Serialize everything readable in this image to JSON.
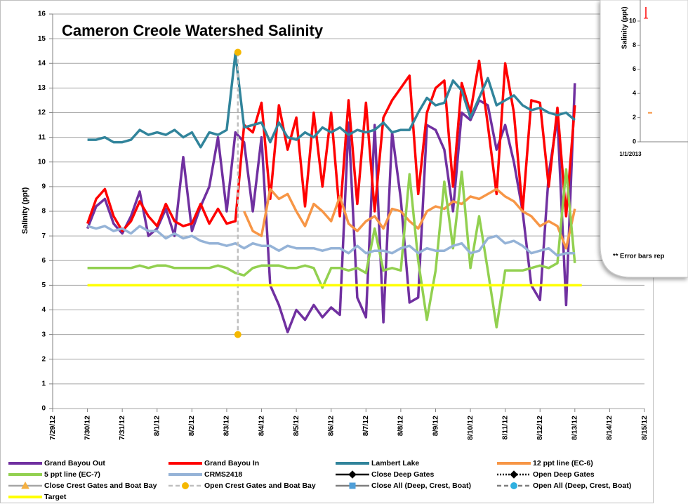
{
  "chart_data": [
    {
      "type": "line",
      "title": "Cameron Creole Watershed Salinity",
      "ylabel": "Salinity (ppt)",
      "xlim": [
        0,
        17
      ],
      "xticks": [
        {
          "value": 0,
          "label": "7/29/12"
        },
        {
          "value": 1,
          "label": "7/30/12"
        },
        {
          "value": 2,
          "label": "7/31/12"
        },
        {
          "value": 3,
          "label": "8/1/12"
        },
        {
          "value": 4,
          "label": "8/2/12"
        },
        {
          "value": 5,
          "label": "8/3/12"
        },
        {
          "value": 6,
          "label": "8/4/12"
        },
        {
          "value": 7,
          "label": "8/5/12"
        },
        {
          "value": 8,
          "label": "8/6/12"
        },
        {
          "value": 9,
          "label": "8/7/12"
        },
        {
          "value": 10,
          "label": "8/8/12"
        },
        {
          "value": 11,
          "label": "8/9/12"
        },
        {
          "value": 12,
          "label": "8/10/12"
        },
        {
          "value": 13,
          "label": "8/11/12"
        },
        {
          "value": 14,
          "label": "8/12/12"
        },
        {
          "value": 15,
          "label": "8/13/12"
        },
        {
          "value": 16,
          "label": "8/14/12"
        },
        {
          "value": 17,
          "label": "8/15/12"
        }
      ],
      "ylim": [
        0,
        16
      ],
      "yticks": [
        0,
        1,
        2,
        3,
        4,
        5,
        6,
        7,
        8,
        9,
        10,
        11,
        12,
        13,
        14,
        15,
        16
      ],
      "grid": true,
      "x": [
        1,
        1.25,
        1.5,
        1.75,
        2,
        2.25,
        2.5,
        2.75,
        3,
        3.25,
        3.5,
        3.75,
        4,
        4.25,
        4.5,
        4.75,
        5,
        5.25,
        5.5,
        5.75,
        6,
        6.25,
        6.5,
        6.75,
        7,
        7.25,
        7.5,
        7.75,
        8,
        8.25,
        8.5,
        8.75,
        9,
        9.25,
        9.5,
        9.75,
        10,
        10.25,
        10.5,
        10.75,
        11,
        11.25,
        11.5,
        11.75,
        12,
        12.25,
        12.5,
        12.75,
        13,
        13.25,
        13.5,
        13.75,
        14,
        14.25,
        14.5,
        14.75,
        15
      ],
      "series": [
        {
          "name": "Grand Bayou Out",
          "color": "#7030a0",
          "values": [
            7.3,
            8.2,
            8.5,
            7.5,
            7.1,
            7.8,
            8.8,
            7.0,
            7.3,
            8.1,
            7.0,
            10.2,
            7.2,
            8.2,
            9.0,
            11.0,
            8.0,
            11.2,
            10.8,
            8.0,
            11.0,
            5.0,
            4.2,
            3.1,
            4.0,
            3.6,
            4.2,
            3.7,
            4.1,
            3.8,
            11.6,
            4.5,
            3.7,
            11.5,
            3.5,
            11.2,
            8.5,
            4.3,
            4.5,
            11.5,
            11.3,
            10.5,
            8.0,
            12.0,
            11.7,
            12.5,
            12.3,
            10.5,
            11.5,
            10.0,
            8.0,
            5.0,
            4.4,
            9.5,
            11.8,
            4.2,
            13.2
          ]
        },
        {
          "name": "Grand Bayou In",
          "color": "#ff0000",
          "values": [
            7.5,
            8.5,
            8.9,
            7.8,
            7.2,
            7.6,
            8.4,
            7.8,
            7.4,
            8.3,
            7.6,
            7.4,
            7.5,
            8.3,
            7.5,
            8.1,
            7.5,
            7.6,
            11.5,
            11.2,
            12.4,
            8.5,
            12.3,
            10.5,
            11.8,
            8.2,
            12.0,
            9.0,
            12.0,
            7.8,
            12.5,
            8.3,
            12.4,
            8.0,
            11.8,
            12.5,
            13.0,
            13.5,
            8.7,
            12.0,
            13.0,
            13.3,
            9.0,
            13.2,
            12.0,
            14.1,
            11.5,
            8.7,
            14.0,
            12.0,
            8.0,
            12.5,
            12.4,
            9.0,
            12.2,
            7.8,
            12.3
          ]
        },
        {
          "name": "Lambert Lake",
          "color": "#31849b",
          "values": [
            10.9,
            10.9,
            11.0,
            10.8,
            10.8,
            10.9,
            11.3,
            11.1,
            11.2,
            11.1,
            11.3,
            11.0,
            11.2,
            10.6,
            11.2,
            11.1,
            11.3,
            14.4,
            11.4,
            11.5,
            11.6,
            10.8,
            11.6,
            11.0,
            10.9,
            11.2,
            11.0,
            11.4,
            11.2,
            11.4,
            11.1,
            11.3,
            11.2,
            11.3,
            11.6,
            11.2,
            11.3,
            11.3,
            12.0,
            12.6,
            12.3,
            12.4,
            13.3,
            12.9,
            11.8,
            12.6,
            13.4,
            12.3,
            12.5,
            12.7,
            12.3,
            12.1,
            12.2,
            12.0,
            11.9,
            12.0,
            11.7
          ]
        },
        {
          "name": "12 ppt line (EC-6)",
          "color": "#f79646",
          "values": [
            null,
            null,
            null,
            null,
            null,
            null,
            null,
            null,
            null,
            null,
            null,
            null,
            null,
            null,
            null,
            null,
            null,
            null,
            8.0,
            7.2,
            7.0,
            8.9,
            8.5,
            8.7,
            8.0,
            7.4,
            8.3,
            8.0,
            7.6,
            8.6,
            7.5,
            7.2,
            7.6,
            7.8,
            7.3,
            8.1,
            8.0,
            7.6,
            7.3,
            8.0,
            8.2,
            8.1,
            8.4,
            8.3,
            8.6,
            8.5,
            8.7,
            8.9,
            8.6,
            8.4,
            8.0,
            7.8,
            7.4,
            7.6,
            7.4,
            6.5,
            8.1
          ]
        },
        {
          "name": "5 ppt line (EC-7)",
          "color": "#92d050",
          "values": [
            5.7,
            5.7,
            5.7,
            5.7,
            5.7,
            5.7,
            5.8,
            5.7,
            5.8,
            5.8,
            5.7,
            5.7,
            5.7,
            5.7,
            5.7,
            5.8,
            5.7,
            5.5,
            5.4,
            5.7,
            5.8,
            5.8,
            5.8,
            5.7,
            5.7,
            5.8,
            5.7,
            4.9,
            5.7,
            5.7,
            5.6,
            5.7,
            5.5,
            7.3,
            5.6,
            5.7,
            5.6,
            9.5,
            6.0,
            3.6,
            5.6,
            9.2,
            6.5,
            9.6,
            5.7,
            7.8,
            5.6,
            3.3,
            5.6,
            5.6,
            5.6,
            5.7,
            5.8,
            5.7,
            5.9,
            9.7,
            5.9
          ]
        },
        {
          "name": "CRMS2418",
          "color": "#95b3d7",
          "values": [
            7.4,
            7.3,
            7.4,
            7.2,
            7.3,
            7.1,
            7.4,
            7.2,
            7.2,
            6.9,
            7.1,
            6.9,
            7.0,
            6.8,
            6.7,
            6.7,
            6.6,
            6.7,
            6.5,
            6.7,
            6.6,
            6.6,
            6.4,
            6.6,
            6.5,
            6.5,
            6.5,
            6.4,
            6.5,
            6.5,
            6.3,
            6.6,
            6.3,
            6.4,
            6.4,
            6.3,
            6.5,
            6.6,
            6.3,
            6.5,
            6.4,
            6.4,
            6.6,
            6.7,
            6.3,
            6.4,
            6.9,
            7.0,
            6.7,
            6.8,
            6.6,
            6.3,
            6.4,
            6.5,
            6.2,
            6.3,
            6.3
          ]
        },
        {
          "name": "Close Deep Gates",
          "color": "#000000",
          "marker": "diamond",
          "marker_color": "#000000",
          "dash": "none",
          "x": [],
          "values": []
        },
        {
          "name": "Open Deep Gates",
          "color": "#000000",
          "marker": "diamond",
          "marker_color": "#000000",
          "dash": "2 2",
          "x": [],
          "values": []
        },
        {
          "name": "Close Crest Gates and Boat Bay",
          "color": "#a6a6a6",
          "marker": "triangle",
          "marker_color": "#f5b041",
          "dash": "none",
          "x": [],
          "values": []
        },
        {
          "name": "Open Crest Gates and Boat Bay",
          "color": "#bfbfbf",
          "marker": "circle",
          "marker_color": "#f5b800",
          "dash": "6 4",
          "x": [
            5.32,
            5.32
          ],
          "values": [
            14.45,
            3.0
          ]
        },
        {
          "name": "Close All (Deep, Crest, Boat)",
          "color": "#7f7f7f",
          "marker": "square",
          "marker_color": "#4f9fd8",
          "dash": "none",
          "x": [],
          "values": []
        },
        {
          "name": "Open All (Deep, Crest, Boat)",
          "color": "#7f7f7f",
          "marker": "circle",
          "marker_color": "#2fb0e0",
          "dash": "6 4",
          "x": [],
          "values": []
        },
        {
          "name": "Target",
          "color": "#ffff00",
          "x": [
            1,
            15.2
          ],
          "values": [
            5,
            5
          ]
        }
      ]
    },
    {
      "type": "line",
      "ylabel": "Salinity (ppt)",
      "categories": [
        "1/1/2013"
      ],
      "ylim": [
        0,
        12
      ],
      "yticks": [
        0,
        2,
        4,
        6,
        8,
        10
      ],
      "note": "** Error bars rep",
      "series": [
        {
          "color": "#ff0000",
          "values": [
            10.7
          ]
        },
        {
          "color": "#f79646",
          "values": [
            2.4
          ]
        }
      ]
    }
  ]
}
